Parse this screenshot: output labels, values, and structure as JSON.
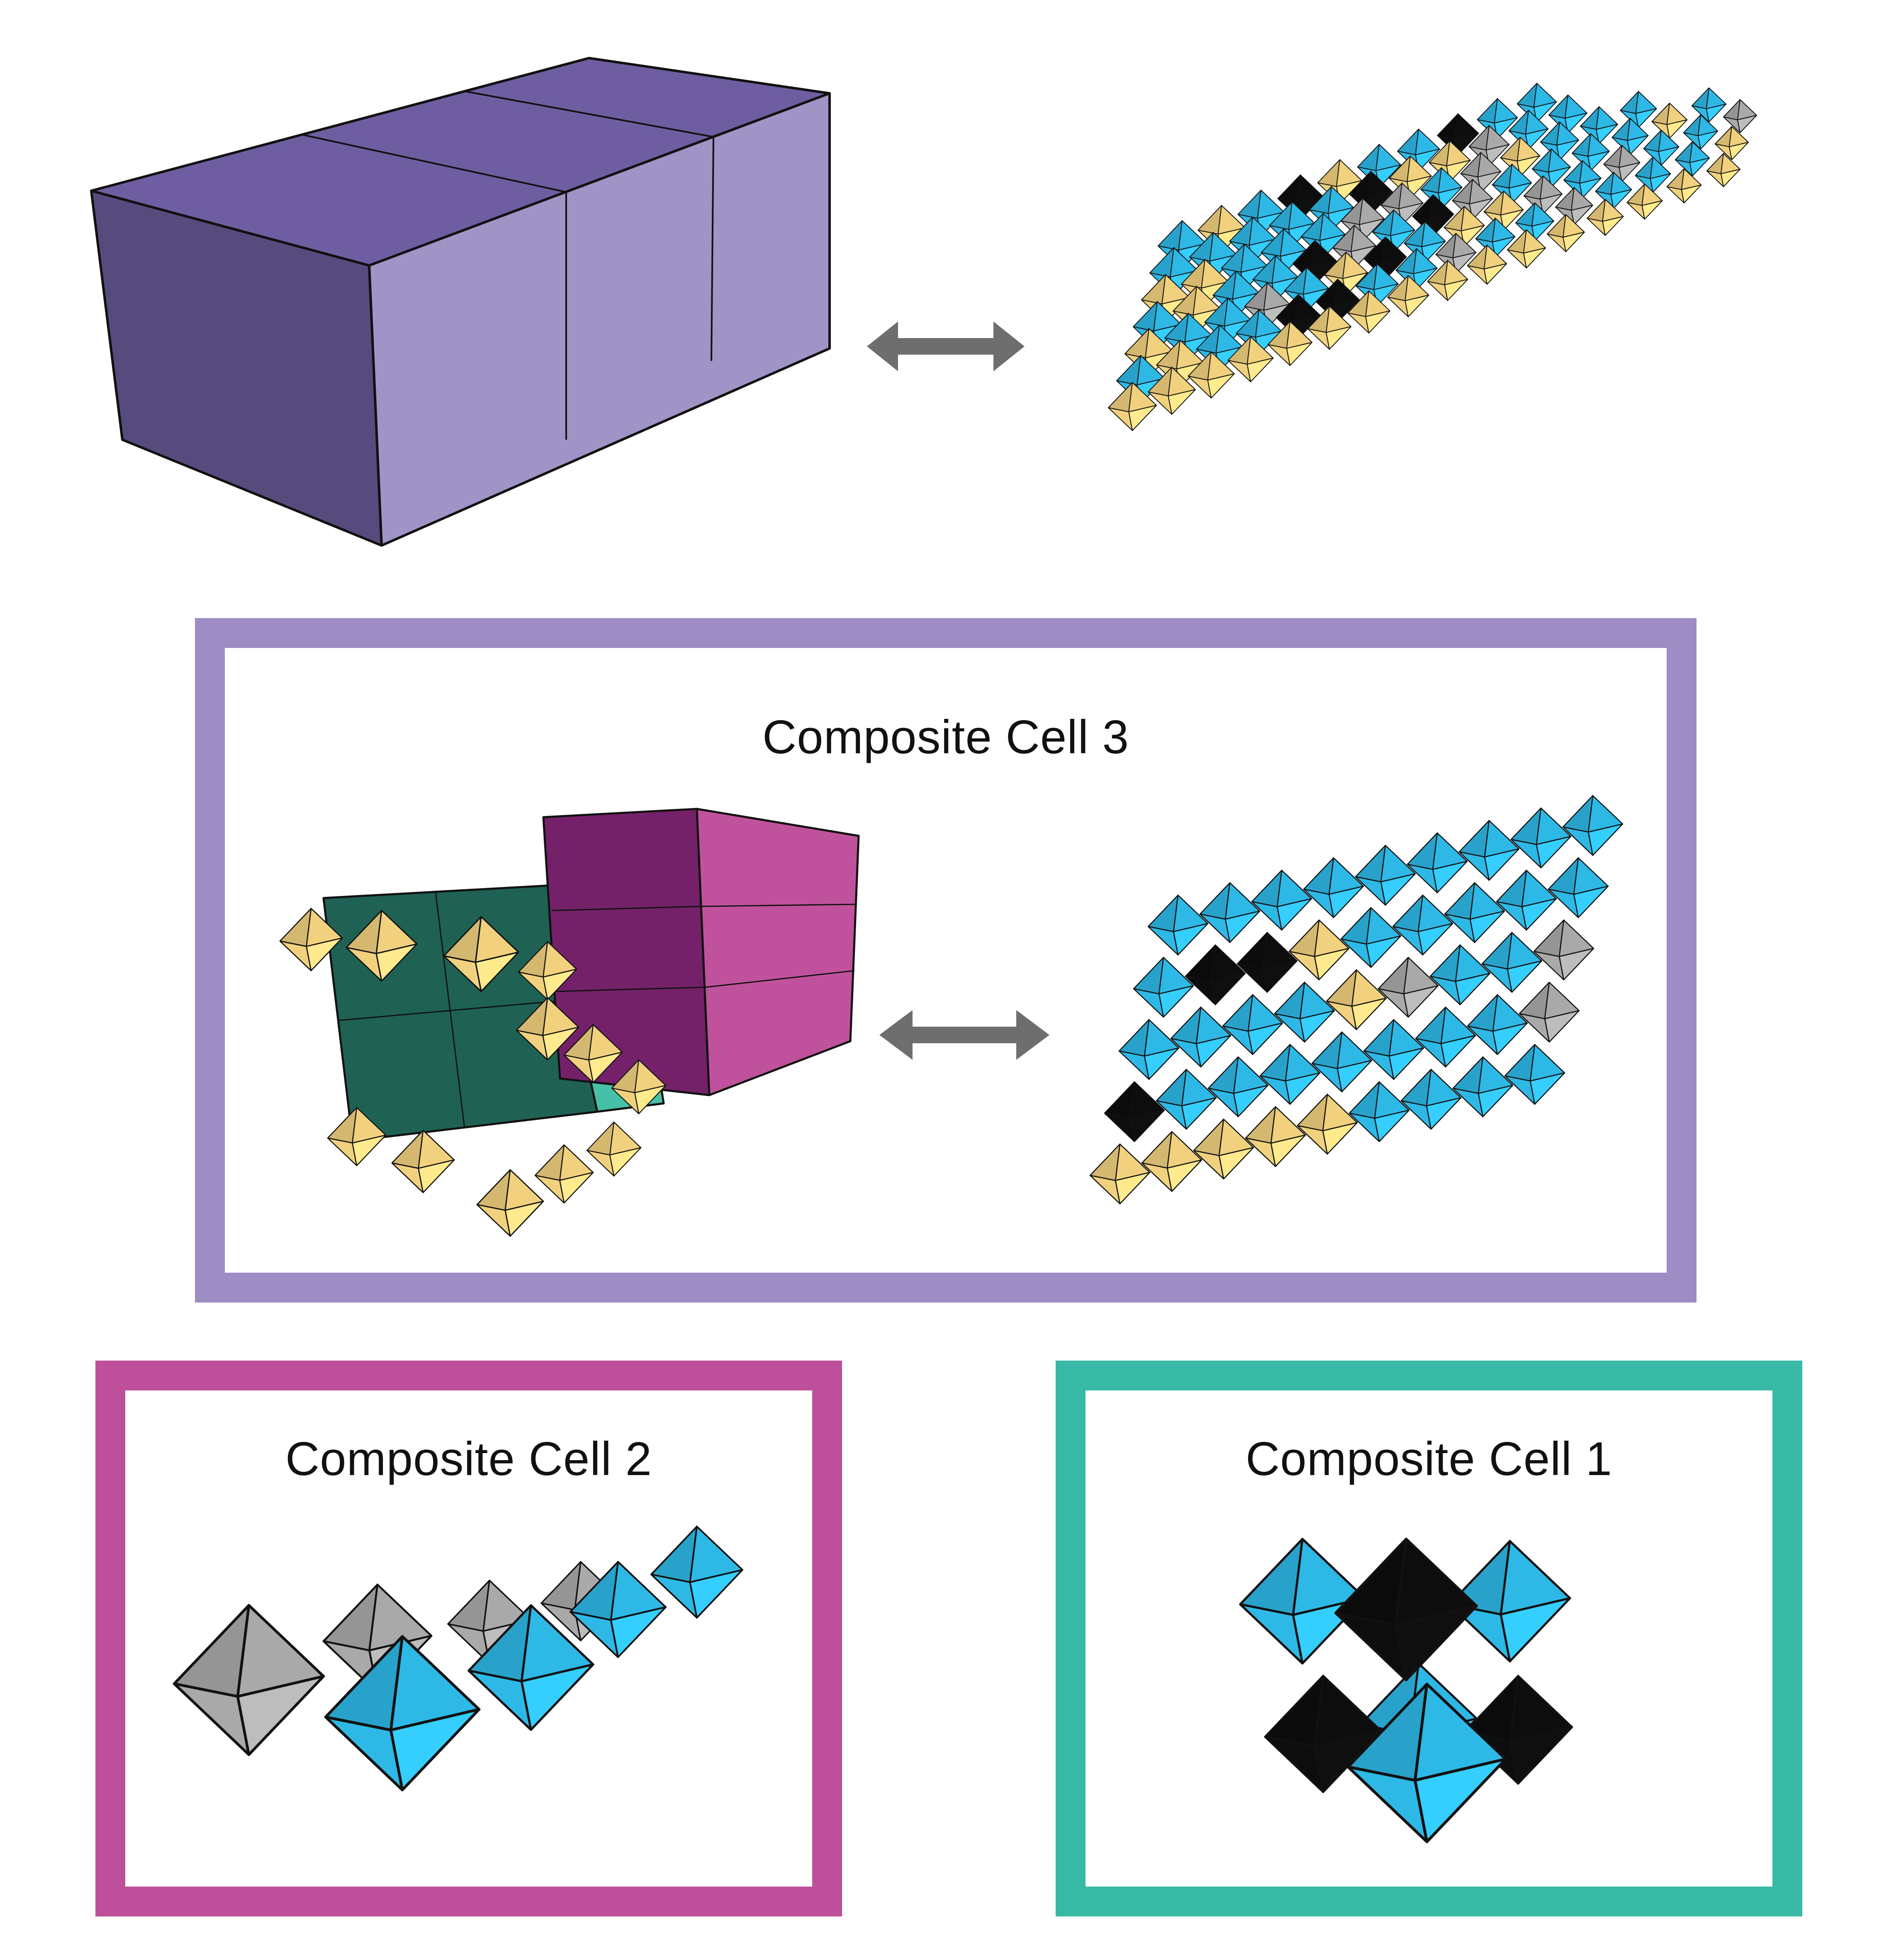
{
  "panels": {
    "top": {
      "title": ""
    },
    "composite_cell_3": {
      "title": "Composite Cell 3",
      "border_color": "#9e8cc4"
    },
    "composite_cell_2": {
      "title": "Composite Cell 2",
      "border_color": "#be4f9b"
    },
    "composite_cell_1": {
      "title": "Composite Cell 1",
      "border_color": "#37b9a5"
    }
  },
  "colors": {
    "box_purple_front": "#574b7e",
    "box_purple_top": "#6e5ea1",
    "box_purple_side": "#a093c6",
    "magenta_front": "#74216a",
    "magenta_side": "#c0529d",
    "green_front": "#1f6254",
    "green_side": "#47c0a8",
    "octahedron_yellow": "#f1d17e",
    "octahedron_blue": "#2eb8e6",
    "octahedron_gray": "#a9a9a9",
    "octahedron_black": "#0d0d0d",
    "arrow_gray": "#6e6e6e"
  },
  "icons": {
    "double_arrow": "double-headed-arrow-icon",
    "octahedron": "octahedron-icon"
  }
}
